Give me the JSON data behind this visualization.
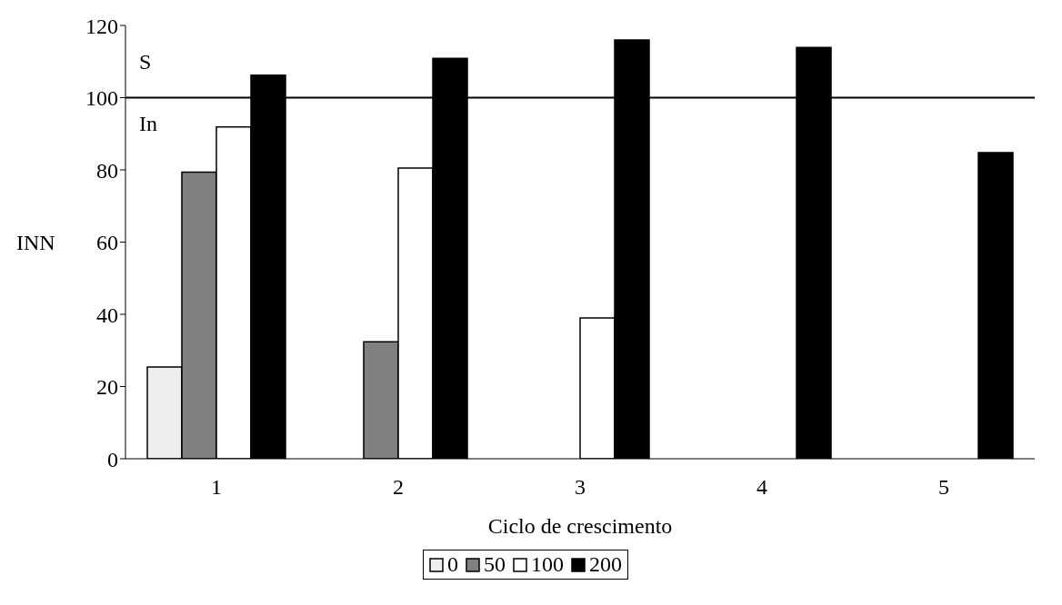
{
  "chart_data": {
    "type": "bar",
    "xlabel": "Ciclo de crescimento",
    "ylabel": "INN",
    "categories": [
      "1",
      "2",
      "3",
      "4",
      "5"
    ],
    "series": [
      {
        "name": "0",
        "color": "#eeeeee",
        "values": [
          25.4,
          null,
          null,
          null,
          null
        ]
      },
      {
        "name": "50",
        "color": "#808080",
        "values": [
          79.4,
          32.4,
          null,
          null,
          null
        ]
      },
      {
        "name": "100",
        "color": "#ffffff",
        "values": [
          91.9,
          80.5,
          39,
          null,
          null
        ]
      },
      {
        "name": "200",
        "color": "#000000",
        "values": [
          106.2,
          110.9,
          116,
          113.9,
          84.8
        ]
      }
    ],
    "ylim": [
      0,
      120
    ],
    "yticks": [
      0,
      20,
      40,
      60,
      80,
      100,
      120
    ],
    "ref_lines": [
      {
        "axis": "y",
        "value": 100,
        "color": "#000000"
      }
    ],
    "annotations": [
      "S",
      "In"
    ],
    "legend": "bottom",
    "grid": false
  }
}
